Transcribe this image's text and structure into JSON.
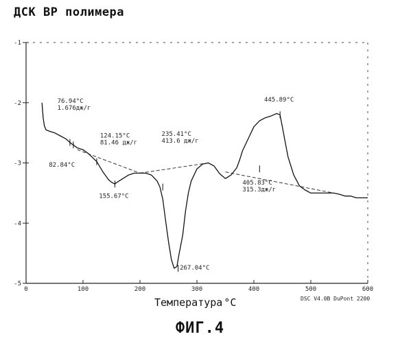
{
  "page": {
    "title": "ДСК ВР полимера",
    "caption": "ФИГ.4",
    "footer": "DSC V4.0B DuPont 2200"
  },
  "chart_data": {
    "type": "line",
    "xlabel": "Температура",
    "xlabel_unit": "°C",
    "xlim": [
      0,
      600
    ],
    "ylim": [
      -5,
      -1
    ],
    "x_ticks": [
      0,
      100,
      200,
      300,
      400,
      500,
      600
    ],
    "x_tick_labels": [
      "0",
      "100",
      "200",
      "300",
      "400",
      "500",
      "600"
    ],
    "y_ticks": [
      -1,
      -2,
      -3,
      -4,
      -5
    ],
    "y_tick_labels": [
      "-1",
      "-2",
      "-3",
      "-4",
      "-5"
    ],
    "series": [
      {
        "x": [
          28,
          30,
          32,
          35,
          40,
          50,
          60,
          70,
          76.9,
          82.8,
          90,
          100,
          110,
          124.2,
          135,
          145,
          150,
          155.7,
          160,
          170,
          180,
          190,
          200,
          210,
          220,
          230,
          235,
          240,
          245,
          250,
          255,
          260,
          265,
          268,
          275,
          280,
          285,
          290,
          300,
          310,
          320,
          330,
          340,
          350,
          360,
          370,
          375,
          380,
          390,
          400,
          410,
          420,
          430,
          435,
          440,
          445.9,
          450,
          455,
          460,
          470,
          480,
          490,
          500,
          510,
          520,
          530,
          540,
          550,
          560,
          570,
          580,
          590,
          600
        ],
        "y": [
          -2.0,
          -2.25,
          -2.38,
          -2.45,
          -2.47,
          -2.5,
          -2.55,
          -2.6,
          -2.66,
          -2.7,
          -2.75,
          -2.78,
          -2.85,
          -2.98,
          -3.15,
          -3.28,
          -3.32,
          -3.35,
          -3.32,
          -3.26,
          -3.2,
          -3.17,
          -3.17,
          -3.17,
          -3.2,
          -3.3,
          -3.4,
          -3.6,
          -3.95,
          -4.3,
          -4.6,
          -4.75,
          -4.72,
          -4.55,
          -4.2,
          -3.8,
          -3.5,
          -3.3,
          -3.1,
          -3.02,
          -3.0,
          -3.05,
          -3.18,
          -3.26,
          -3.2,
          -3.08,
          -2.95,
          -2.8,
          -2.6,
          -2.4,
          -2.3,
          -2.25,
          -2.22,
          -2.2,
          -2.18,
          -2.2,
          -2.4,
          -2.65,
          -2.9,
          -3.2,
          -3.38,
          -3.45,
          -3.5,
          -3.5,
          -3.5,
          -3.5,
          -3.5,
          -3.52,
          -3.55,
          -3.55,
          -3.58,
          -3.58,
          -3.58
        ]
      }
    ],
    "baselines": [
      {
        "x": [
          90,
          200
        ],
        "y": [
          -2.78,
          -3.17
        ]
      },
      {
        "x": [
          200,
          320
        ],
        "y": [
          -3.17,
          -3.0
        ]
      },
      {
        "x": [
          350,
          540
        ],
        "y": [
          -3.15,
          -3.5
        ]
      }
    ],
    "annotations": [
      {
        "lines": [
          "76.94°C",
          "1.676дж/г"
        ],
        "at": [
          77,
          -2.66
        ],
        "text_at": [
          55,
          -2.0
        ]
      },
      {
        "lines": [
          "82.84°C"
        ],
        "at": [
          83,
          -2.7
        ],
        "text_at": [
          40,
          -3.06
        ]
      },
      {
        "lines": [
          "124.15°C",
          "81.46 дж/г"
        ],
        "at": [
          124,
          -2.98
        ],
        "text_at": [
          130,
          -2.58
        ]
      },
      {
        "lines": [
          "155.67°C"
        ],
        "at": [
          156,
          -3.35
        ],
        "text_at": [
          128,
          -3.58
        ]
      },
      {
        "lines": [
          "235.41°C",
          "413.6 дж/г"
        ],
        "at": [
          240,
          -3.4
        ],
        "text_at": [
          238,
          -2.55
        ]
      },
      {
        "lines": [
          "267.04°C"
        ],
        "at": [
          267,
          -4.75
        ],
        "text_at": [
          270,
          -4.77
        ]
      },
      {
        "lines": [
          "405.83°C",
          "315.3дж/г"
        ],
        "at": [
          410,
          -3.1
        ],
        "text_at": [
          380,
          -3.36
        ]
      },
      {
        "lines": [
          "445.89°C"
        ],
        "at": [
          446,
          -2.2
        ],
        "text_at": [
          418,
          -1.98
        ]
      }
    ]
  }
}
